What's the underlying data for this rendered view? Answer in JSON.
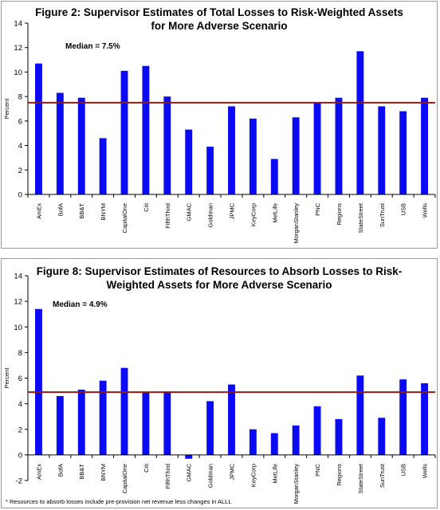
{
  "colors": {
    "bar": "#0a0af5",
    "median_line": "#8b1a1a",
    "axis": "#000000"
  },
  "charts": [
    {
      "title_line1": "Figure 2: Supervisor Estimates of Total Losses to Risk-Weighted Assets",
      "title_line2": "for More Adverse Scenario",
      "median_label": "Median = 7.5%",
      "ylabel": "Percent",
      "footnote": ""
    },
    {
      "title_line1": "Figure 8: Supervisor Estimates of Resources to Absorb Losses to Risk-",
      "title_line2": "Weighted Assets for More Adverse Scenario",
      "median_label": "Median = 4.9%",
      "ylabel": "Percent",
      "footnote": "* Resources to absorb losses include pre-provision net revenue less changes in ALLL"
    }
  ],
  "chart_data": [
    {
      "type": "bar",
      "title": "Figure 2: Supervisor Estimates of Total Losses to Risk-Weighted Assets for More Adverse Scenario",
      "ylabel": "Percent",
      "categories": [
        "AmEx",
        "BofA",
        "BB&T",
        "BNYM",
        "CapitalOne",
        "Citi",
        "FifthThird",
        "GMAC",
        "Goldman",
        "JPMC",
        "KeyCorp",
        "MetLife",
        "MorganStanley",
        "PNC",
        "Regions",
        "StateStreet",
        "SunTrust",
        "USB",
        "Wells"
      ],
      "values": [
        10.7,
        8.3,
        7.9,
        4.6,
        10.1,
        10.5,
        8.0,
        5.3,
        3.9,
        7.2,
        6.2,
        2.9,
        6.3,
        7.5,
        7.9,
        11.7,
        7.2,
        6.8,
        7.9
      ],
      "ylim": [
        0,
        14
      ],
      "yticks": [
        0,
        2,
        4,
        6,
        8,
        10,
        12,
        14
      ],
      "median": 7.5,
      "grid": false
    },
    {
      "type": "bar",
      "title": "Figure 8: Supervisor Estimates of Resources to Absorb Losses to Risk-Weighted Assets for More Adverse Scenario",
      "ylabel": "Percent",
      "categories": [
        "AmEx",
        "BofA",
        "BB&T",
        "BNYM",
        "CapitalOne",
        "Citi",
        "FifthThird",
        "GMAC",
        "Goldman",
        "JPMC",
        "KeyCorp",
        "MetLife",
        "MorganStanley",
        "PNC",
        "Regions",
        "StateStreet",
        "SunTrust",
        "USB",
        "Wells"
      ],
      "values": [
        11.4,
        4.6,
        5.1,
        5.8,
        6.8,
        4.9,
        4.9,
        -0.3,
        4.2,
        5.5,
        2.0,
        1.7,
        2.3,
        3.8,
        2.8,
        6.2,
        2.9,
        5.9,
        5.6
      ],
      "ylim": [
        -2,
        14
      ],
      "yticks": [
        -2,
        0,
        2,
        4,
        6,
        8,
        10,
        12,
        14
      ],
      "median": 4.9,
      "grid": false
    }
  ]
}
